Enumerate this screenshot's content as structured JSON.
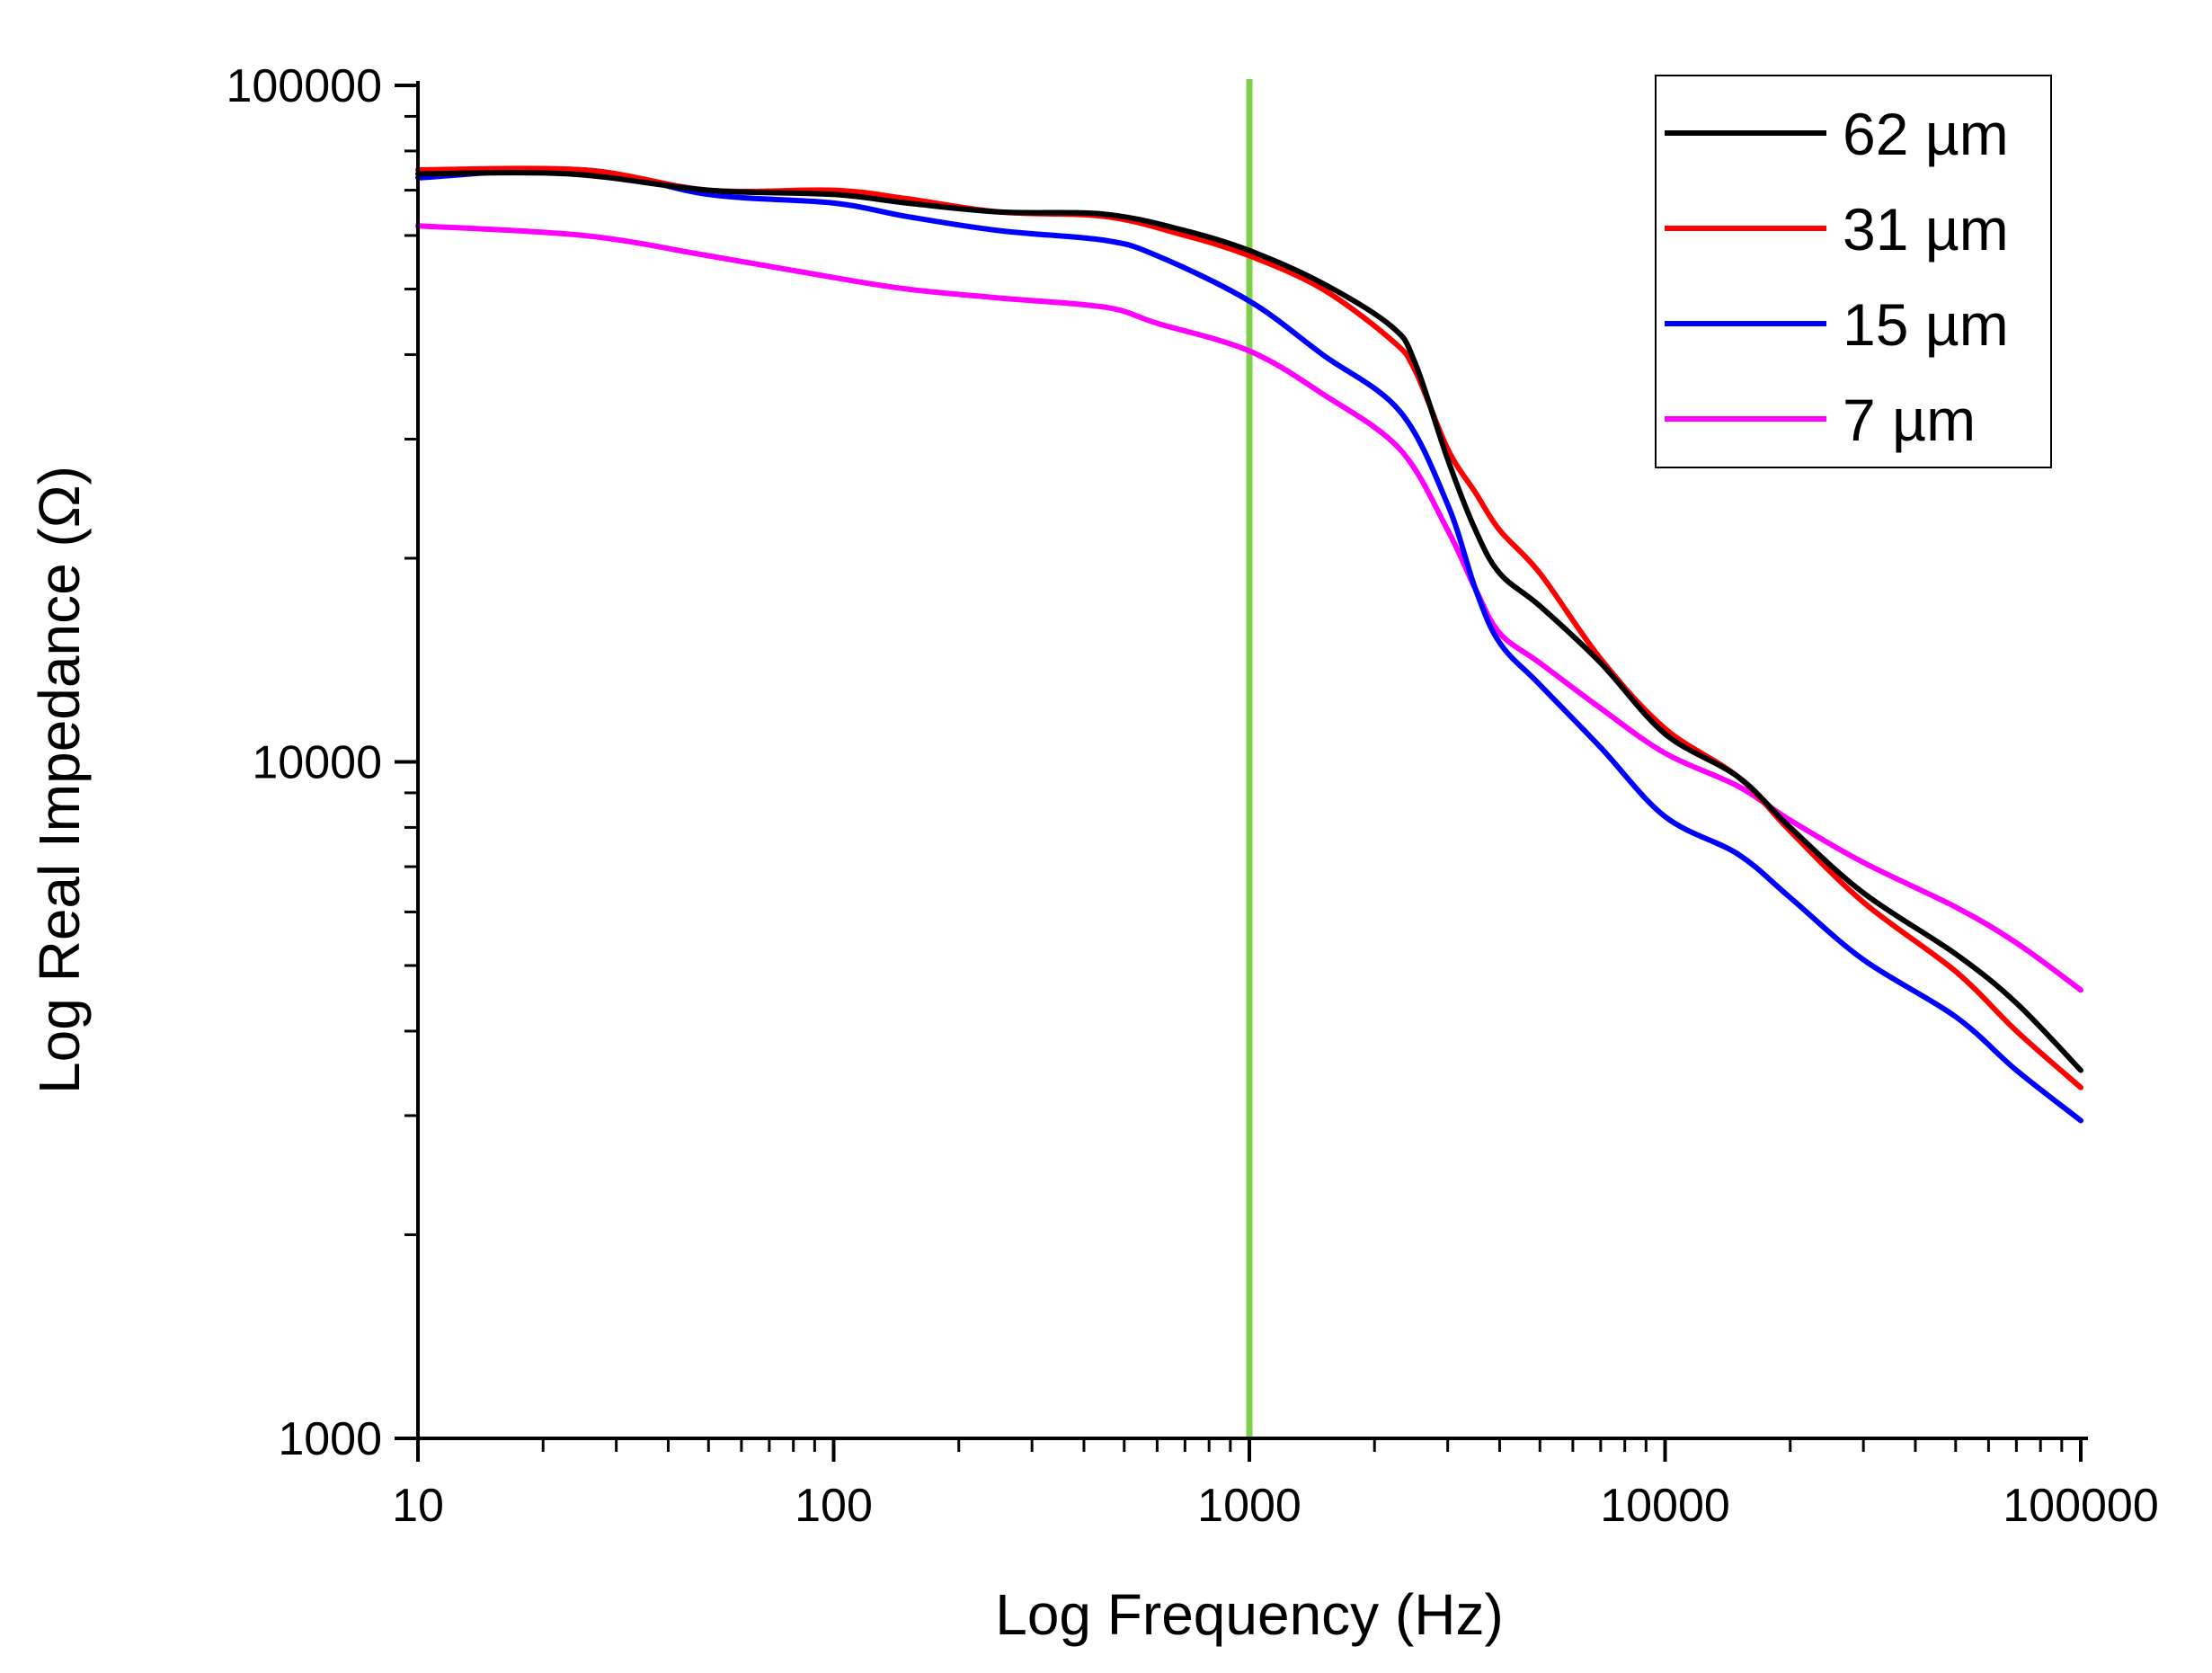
{
  "chart_data": {
    "type": "line",
    "xscale": "log",
    "yscale": "log",
    "xlim": [
      10,
      100000
    ],
    "ylim": [
      1000,
      100000
    ],
    "xlabel": "Log Frequency (Hz)",
    "ylabel": "Log Real Impedance (Ω)",
    "x_ticks": [
      10,
      100,
      1000,
      10000,
      100000
    ],
    "x_tick_labels": [
      "10",
      "100",
      "1000",
      "10000",
      "100000"
    ],
    "y_ticks": [
      1000,
      10000,
      100000
    ],
    "y_tick_labels": [
      "1000",
      "10000",
      "100000"
    ],
    "grid": false,
    "legend_position": "top-right",
    "vertical_marker": {
      "x": 1000,
      "color": "#7ed048"
    },
    "series": [
      {
        "name": "62 µm",
        "color": "#000000",
        "points": [
          [
            10,
            74000
          ],
          [
            23,
            74000
          ],
          [
            50,
            70000
          ],
          [
            100,
            69000
          ],
          [
            150,
            67000
          ],
          [
            250,
            65000
          ],
          [
            450,
            64500
          ],
          [
            700,
            61000
          ],
          [
            1000,
            57000
          ],
          [
            1500,
            51000
          ],
          [
            2200,
            44000
          ],
          [
            2500,
            39000
          ],
          [
            3000,
            28000
          ],
          [
            3500,
            22000
          ],
          [
            4000,
            19000
          ],
          [
            5000,
            17000
          ],
          [
            7000,
            14000
          ],
          [
            10000,
            11000
          ],
          [
            15000,
            9500
          ],
          [
            20000,
            8000
          ],
          [
            30000,
            6400
          ],
          [
            50000,
            5200
          ],
          [
            70000,
            4400
          ],
          [
            100000,
            3500
          ]
        ]
      },
      {
        "name": "31 µm",
        "color": "#ff0000",
        "points": [
          [
            10,
            75000
          ],
          [
            25,
            75000
          ],
          [
            50,
            70000
          ],
          [
            100,
            70000
          ],
          [
            150,
            68000
          ],
          [
            250,
            65000
          ],
          [
            450,
            64000
          ],
          [
            700,
            60000
          ],
          [
            1000,
            56000
          ],
          [
            1500,
            50000
          ],
          [
            2200,
            42000
          ],
          [
            2500,
            38000
          ],
          [
            3000,
            29000
          ],
          [
            3500,
            25000
          ],
          [
            4000,
            22000
          ],
          [
            5000,
            19000
          ],
          [
            7000,
            14200
          ],
          [
            10000,
            11200
          ],
          [
            15000,
            9500
          ],
          [
            20000,
            7900
          ],
          [
            30000,
            6200
          ],
          [
            50000,
            4900
          ],
          [
            70000,
            4000
          ],
          [
            100000,
            3300
          ]
        ]
      },
      {
        "name": "15 µm",
        "color": "#0000ff",
        "points": [
          [
            10,
            73000
          ],
          [
            25,
            75000
          ],
          [
            50,
            69000
          ],
          [
            100,
            67000
          ],
          [
            150,
            64000
          ],
          [
            250,
            61000
          ],
          [
            450,
            59000
          ],
          [
            600,
            56000
          ],
          [
            1000,
            48000
          ],
          [
            1500,
            40000
          ],
          [
            2300,
            33000
          ],
          [
            3000,
            24000
          ],
          [
            3500,
            18000
          ],
          [
            4000,
            15000
          ],
          [
            5000,
            13000
          ],
          [
            7000,
            10500
          ],
          [
            10000,
            8300
          ],
          [
            15000,
            7300
          ],
          [
            20000,
            6300
          ],
          [
            30000,
            5100
          ],
          [
            50000,
            4200
          ],
          [
            70000,
            3500
          ],
          [
            100000,
            2950
          ]
        ]
      },
      {
        "name": "7 µm",
        "color": "#ff00ff",
        "points": [
          [
            10,
            62000
          ],
          [
            25,
            60000
          ],
          [
            50,
            56000
          ],
          [
            100,
            52000
          ],
          [
            150,
            50000
          ],
          [
            250,
            48500
          ],
          [
            450,
            47000
          ],
          [
            600,
            44500
          ],
          [
            1000,
            40500
          ],
          [
            1500,
            35000
          ],
          [
            2300,
            29000
          ],
          [
            3000,
            22000
          ],
          [
            3500,
            18000
          ],
          [
            4000,
            15500
          ],
          [
            5000,
            14000
          ],
          [
            7000,
            12000
          ],
          [
            10000,
            10300
          ],
          [
            15000,
            9200
          ],
          [
            20000,
            8200
          ],
          [
            30000,
            7100
          ],
          [
            50000,
            6100
          ],
          [
            70000,
            5400
          ],
          [
            100000,
            4600
          ]
        ]
      }
    ]
  }
}
